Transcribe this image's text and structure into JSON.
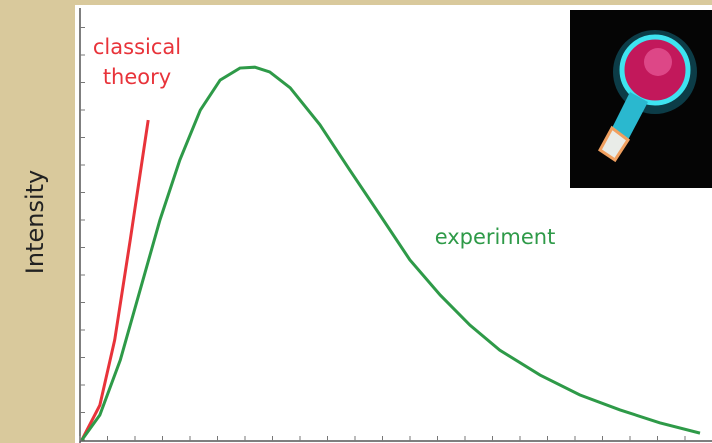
{
  "chart_data": {
    "type": "line",
    "y_label": "Intensity",
    "xlim": [
      0,
      100
    ],
    "ylim": [
      0,
      100
    ],
    "series": [
      {
        "name": "classical theory",
        "color": "#e8333a",
        "x": [
          0.3,
          3.2,
          5.6,
          8.1,
          11.0
        ],
        "values": [
          0,
          8.1,
          23.3,
          46.5,
          74.4
        ]
      },
      {
        "name": "experiment",
        "color": "#2e9a48",
        "x": [
          0.3,
          3.2,
          6.5,
          9.7,
          12.9,
          16.1,
          19.4,
          22.6,
          25.8,
          28.2,
          30.6,
          33.9,
          38.7,
          43.5,
          48.4,
          53.2,
          58.1,
          62.9,
          67.7,
          74.2,
          80.6,
          87.1,
          93.5,
          100
        ],
        "values": [
          0,
          5.8,
          18.6,
          34.9,
          51.2,
          65.1,
          76.7,
          83.7,
          86.5,
          86.7,
          85.6,
          81.9,
          73.3,
          62.8,
          52.3,
          41.9,
          33.7,
          26.7,
          20.9,
          15.1,
          10.5,
          7.0,
          4.0,
          1.6
        ]
      }
    ]
  }
}
